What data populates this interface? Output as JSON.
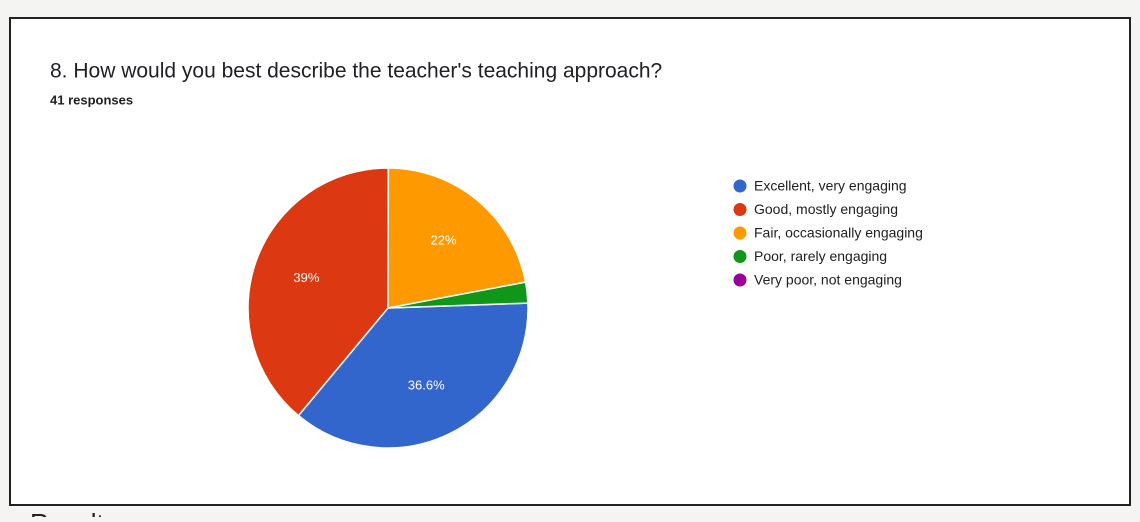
{
  "chart_data": {
    "type": "pie",
    "title": "8. How would you best describe the teacher's teaching approach?",
    "subtitle": "41 responses",
    "categories": [
      "Excellent, very engaging",
      "Good, mostly engaging",
      "Fair, occasionally engaging",
      "Poor, rarely engaging",
      "Very poor, not engaging"
    ],
    "values": [
      36.6,
      39,
      22,
      2.4,
      0
    ],
    "value_labels": [
      "36.6%",
      "39%",
      "22%",
      null,
      null
    ],
    "colors": [
      "#3366cc",
      "#dc3912",
      "#ff9900",
      "#109618",
      "#990099"
    ],
    "legend": "right"
  },
  "footer": {
    "heading": "Results"
  }
}
